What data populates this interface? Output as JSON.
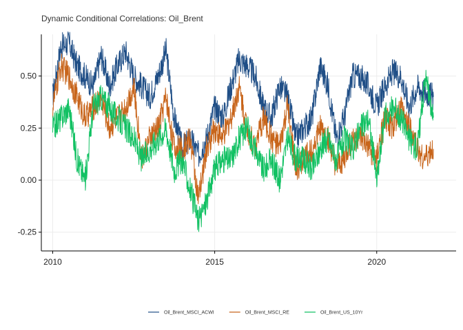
{
  "chart_data": {
    "type": "line",
    "title": "Dynamic Conditional Correlations: Oil_Brent",
    "xlabel": "",
    "ylabel": "",
    "xlim": [
      2009.65,
      2022.45
    ],
    "ylim": [
      -0.34,
      0.7
    ],
    "x_ticks": [
      "2010",
      "2015",
      "2020"
    ],
    "x_tick_values": [
      2010,
      2015,
      2020
    ],
    "y_ticks": [
      "-0.25",
      "0.00",
      "0.25",
      "0.50"
    ],
    "y_tick_values": [
      -0.25,
      0.0,
      0.25,
      0.5
    ],
    "grid": true,
    "legend_position": "bottom",
    "x": [
      2010.0,
      2010.25,
      2010.5,
      2010.75,
      2011.0,
      2011.25,
      2011.5,
      2011.75,
      2012.0,
      2012.25,
      2012.5,
      2012.75,
      2013.0,
      2013.25,
      2013.5,
      2013.75,
      2014.0,
      2014.25,
      2014.5,
      2014.75,
      2015.0,
      2015.25,
      2015.5,
      2015.75,
      2016.0,
      2016.25,
      2016.5,
      2016.75,
      2017.0,
      2017.25,
      2017.5,
      2017.75,
      2018.0,
      2018.25,
      2018.5,
      2018.75,
      2019.0,
      2019.25,
      2019.5,
      2019.75,
      2020.0,
      2020.25,
      2020.5,
      2020.75,
      2021.0,
      2021.25,
      2021.5,
      2021.75
    ],
    "series": [
      {
        "name": "Oil_Brent_MSCI_ACWI",
        "color": "#1f4e86",
        "values": [
          0.4,
          0.64,
          0.66,
          0.55,
          0.5,
          0.45,
          0.6,
          0.45,
          0.55,
          0.62,
          0.5,
          0.45,
          0.4,
          0.5,
          0.62,
          0.3,
          0.15,
          0.2,
          0.12,
          0.2,
          0.35,
          0.3,
          0.45,
          0.58,
          0.55,
          0.5,
          0.35,
          0.3,
          0.45,
          0.4,
          0.2,
          0.25,
          0.3,
          0.55,
          0.45,
          0.2,
          0.3,
          0.5,
          0.5,
          0.45,
          0.35,
          0.45,
          0.52,
          0.5,
          0.35,
          0.45,
          0.42,
          0.4
        ]
      },
      {
        "name": "Oil_Brent_MSCI_RE",
        "color": "#c8651b",
        "values": [
          0.35,
          0.55,
          0.5,
          0.4,
          0.3,
          0.35,
          0.4,
          0.25,
          0.3,
          0.35,
          0.45,
          0.1,
          0.2,
          0.25,
          0.4,
          0.15,
          0.15,
          0.2,
          -0.1,
          0.15,
          0.25,
          0.2,
          0.3,
          0.45,
          0.25,
          0.15,
          0.3,
          0.2,
          0.15,
          0.35,
          0.05,
          0.1,
          0.15,
          0.25,
          0.2,
          0.05,
          0.1,
          0.2,
          0.2,
          0.15,
          0.1,
          0.3,
          0.25,
          0.35,
          0.25,
          0.15,
          0.1,
          0.15
        ]
      },
      {
        "name": "Oil_Brent_US_10Yr",
        "color": "#12c163",
        "values": [
          0.25,
          0.3,
          0.35,
          0.1,
          0.0,
          0.35,
          0.4,
          0.35,
          0.3,
          0.25,
          0.2,
          0.1,
          0.15,
          0.2,
          0.25,
          0.05,
          0.1,
          -0.05,
          -0.2,
          -0.1,
          0.05,
          0.1,
          0.1,
          0.2,
          0.25,
          0.15,
          0.05,
          0.1,
          0.0,
          0.2,
          0.1,
          0.1,
          0.05,
          0.15,
          0.2,
          0.1,
          0.2,
          0.15,
          0.25,
          0.3,
          0.0,
          0.3,
          0.35,
          0.3,
          0.2,
          0.15,
          0.5,
          0.3
        ]
      }
    ],
    "legend": [
      {
        "label": "Oil_Brent_MSCI_ACWI",
        "color": "#1f4e86"
      },
      {
        "label": "Oil_Brent_MSCI_RE",
        "color": "#c8651b"
      },
      {
        "label": "Oil_Brent_US_10Yr",
        "color": "#12c163"
      }
    ]
  }
}
